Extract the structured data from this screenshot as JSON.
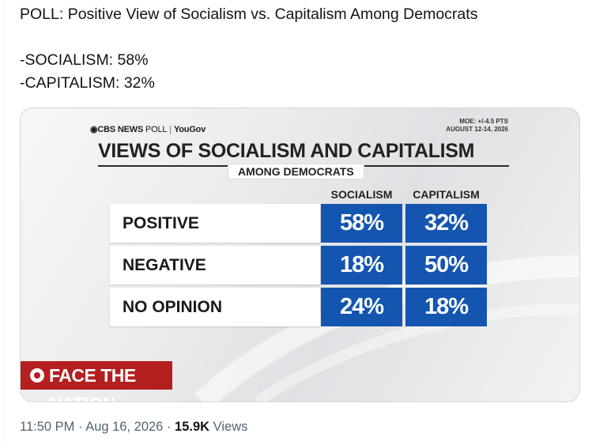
{
  "tweet": {
    "headline": "POLL: Positive View of Socialism vs. Capitalism Among Democrats",
    "line_socialism": "-SOCIALISM: 58%",
    "line_capitalism": "-CAPITALISM: 32%"
  },
  "graphic": {
    "brand": "CBS NEWS",
    "brand_poll": "POLL",
    "partner": "YouGov",
    "moe_line1": "MOE: +/-4.5 PTS",
    "moe_line2": "AUGUST 12-14, 2026",
    "title": "VIEWS OF SOCIALISM AND CAPITALISM",
    "subtitle": "AMONG DEMOCRATS",
    "logo_text": "FACE THE NATION",
    "colors": {
      "cell_blue": "#1455b0",
      "logo_red": "#b41f1f"
    }
  },
  "chart_data": {
    "type": "table",
    "title": "VIEWS OF SOCIALISM AND CAPITALISM",
    "subtitle": "AMONG DEMOCRATS",
    "columns": [
      "SOCIALISM",
      "CAPITALISM"
    ],
    "rows": [
      {
        "label": "POSITIVE",
        "values": [
          "58%",
          "32%"
        ]
      },
      {
        "label": "NEGATIVE",
        "values": [
          "18%",
          "50%"
        ]
      },
      {
        "label": "NO OPINION",
        "values": [
          "24%",
          "18%"
        ]
      }
    ]
  },
  "meta": {
    "time": "11:50 PM",
    "date": "Aug 16, 2026",
    "views_count": "15.9K",
    "views_label": "Views",
    "separator": "·"
  }
}
